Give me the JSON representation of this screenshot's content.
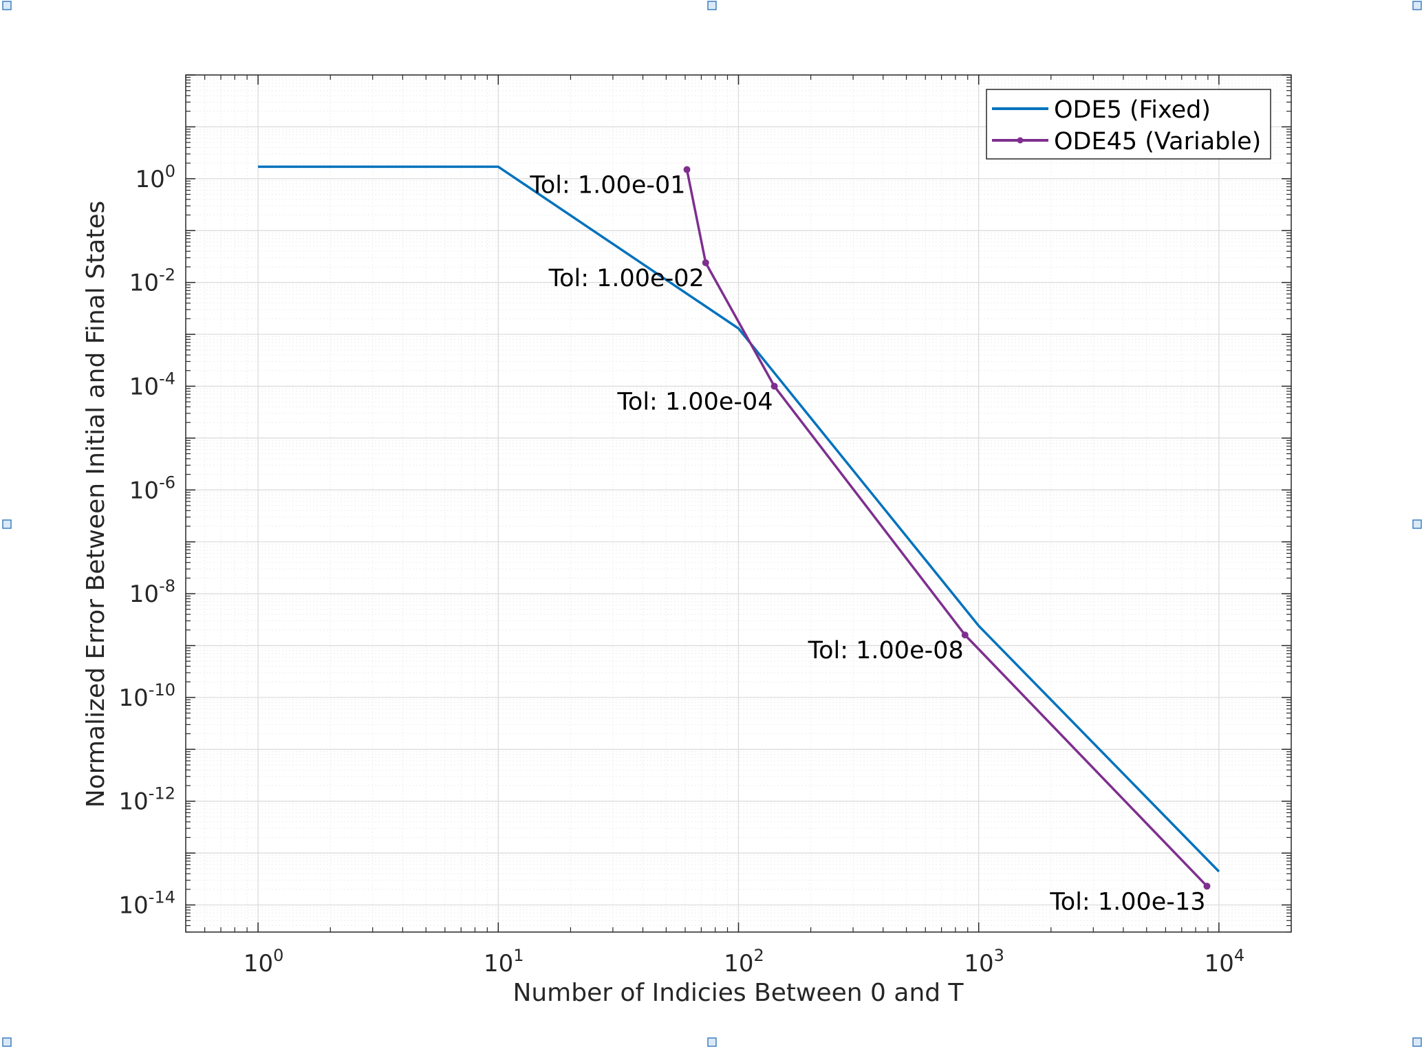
{
  "chart_data": {
    "type": "line",
    "title": "",
    "xlabel": "Number of Indicies Between 0 and T",
    "ylabel": "Normalized Error Between Initial and Final States",
    "xscale": "log",
    "yscale": "log",
    "xlim": [
      0.5,
      20000
    ],
    "ylim": [
      3e-15,
      100
    ],
    "grid": "on (major and minor)",
    "legend_position": "top-right",
    "x_ticks": [
      {
        "base": "10",
        "exp": "0",
        "value": 1
      },
      {
        "base": "10",
        "exp": "1",
        "value": 10
      },
      {
        "base": "10",
        "exp": "2",
        "value": 100
      },
      {
        "base": "10",
        "exp": "3",
        "value": 1000
      },
      {
        "base": "10",
        "exp": "4",
        "value": 10000
      }
    ],
    "y_ticks": [
      {
        "base": "10",
        "exp": "0",
        "value": 1
      },
      {
        "base": "10",
        "exp": "-2",
        "value": 0.01
      },
      {
        "base": "10",
        "exp": "-4",
        "value": 0.0001
      },
      {
        "base": "10",
        "exp": "-6",
        "value": 1e-06
      },
      {
        "base": "10",
        "exp": "-8",
        "value": 1e-08
      },
      {
        "base": "10",
        "exp": "-10",
        "value": 1e-10
      },
      {
        "base": "10",
        "exp": "-12",
        "value": 1e-12
      },
      {
        "base": "10",
        "exp": "-14",
        "value": 1e-14
      }
    ],
    "series": [
      {
        "name": "ODE5 (Fixed)",
        "color": "#0072BD",
        "marker": "none",
        "x": [
          1,
          10,
          100,
          1000,
          10000
        ],
        "y": [
          1.7,
          1.7,
          0.0013,
          2.4e-09,
          4.4e-14
        ]
      },
      {
        "name": "ODE45 (Variable)",
        "color": "#7E2F8E",
        "marker": "dot",
        "x": [
          61,
          73,
          141,
          877,
          8917
        ],
        "y": [
          1.5,
          0.024,
          0.0001,
          1.6e-09,
          2.3e-14
        ]
      }
    ],
    "annotations": [
      {
        "text": "Tol: 1.00e-01",
        "x": 61,
        "y": 1.5
      },
      {
        "text": "Tol: 1.00e-02",
        "x": 73,
        "y": 0.024
      },
      {
        "text": "Tol: 1.00e-04",
        "x": 141,
        "y": 0.0001
      },
      {
        "text": "Tol: 1.00e-08",
        "x": 877,
        "y": 1.6e-09
      },
      {
        "text": "Tol: 1.00e-13",
        "x": 8917,
        "y": 2.3e-14
      }
    ]
  }
}
